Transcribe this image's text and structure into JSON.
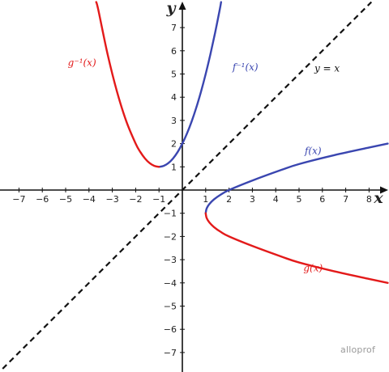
{
  "chart_data": {
    "type": "line",
    "title": "",
    "xlabel": "x",
    "ylabel": "y",
    "xlim": [
      -7.7,
      8.8
    ],
    "ylim": [
      -7.8,
      8.1
    ],
    "x_ticks": [
      -7,
      -6,
      -5,
      -4,
      -3,
      -2,
      -1,
      1,
      2,
      3,
      4,
      5,
      6,
      7,
      8
    ],
    "y_ticks": [
      -7,
      -6,
      -5,
      -4,
      -3,
      -2,
      -1,
      1,
      2,
      3,
      4,
      5,
      6,
      7
    ],
    "grid": false,
    "colors": {
      "red": "#e31a1a",
      "blue": "#3a46b0",
      "black": "#111111"
    },
    "series": [
      {
        "name": "f(x)",
        "label": "f(x)",
        "color": "#3a46b0",
        "label_at": [
          5.6,
          1.55
        ],
        "points": [
          [
            1,
            -1
          ],
          [
            1.04,
            -0.8
          ],
          [
            1.16,
            -0.6
          ],
          [
            1.36,
            -0.4
          ],
          [
            1.64,
            -0.2
          ],
          [
            2,
            0
          ],
          [
            3.0,
            0.41
          ],
          [
            4.25,
            0.87
          ],
          [
            5.0,
            1.12
          ],
          [
            6.5,
            1.5
          ],
          [
            8.0,
            1.83
          ],
          [
            8.8,
            2.0
          ]
        ]
      },
      {
        "name": "g(x)",
        "label": "g(x)",
        "color": "#e31a1a",
        "label_at": [
          5.6,
          -3.5
        ],
        "points": [
          [
            1,
            -1
          ],
          [
            1.04,
            -1.2
          ],
          [
            1.16,
            -1.4
          ],
          [
            1.36,
            -1.6
          ],
          [
            1.64,
            -1.8
          ],
          [
            2,
            -2
          ],
          [
            3.0,
            -2.41
          ],
          [
            4.25,
            -2.87
          ],
          [
            5.0,
            -3.12
          ],
          [
            6.5,
            -3.5
          ],
          [
            8.0,
            -3.83
          ],
          [
            8.8,
            -4.0
          ]
        ]
      },
      {
        "name": "f^-1(x)",
        "label": "f⁻¹(x)",
        "color": "#3a46b0",
        "label_at": [
          2.7,
          5.15
        ],
        "points": [
          [
            -1,
            1
          ],
          [
            -0.8,
            1.04
          ],
          [
            -0.6,
            1.16
          ],
          [
            -0.4,
            1.36
          ],
          [
            -0.2,
            1.64
          ],
          [
            0,
            2
          ],
          [
            0.2,
            2.44
          ],
          [
            0.4,
            2.96
          ],
          [
            0.6,
            3.56
          ],
          [
            0.8,
            4.24
          ],
          [
            1.0,
            5.0
          ],
          [
            1.2,
            5.84
          ],
          [
            1.4,
            6.76
          ],
          [
            1.6,
            7.76
          ],
          [
            1.66,
            8.1
          ]
        ]
      },
      {
        "name": "g^-1(x)",
        "label": "g⁻¹(x)",
        "color": "#e31a1a",
        "label_at": [
          -4.3,
          5.35
        ],
        "points": [
          [
            -1,
            1
          ],
          [
            -1.2,
            1.04
          ],
          [
            -1.4,
            1.16
          ],
          [
            -1.6,
            1.36
          ],
          [
            -1.8,
            1.64
          ],
          [
            -2,
            2
          ],
          [
            -2.4,
            2.96
          ],
          [
            -2.8,
            4.24
          ],
          [
            -3.2,
            5.84
          ],
          [
            -3.6,
            7.76
          ],
          [
            -3.69,
            8.1
          ]
        ]
      },
      {
        "name": "y = x",
        "label": "y = x",
        "color": "#111111",
        "dashed": true,
        "label_at": [
          6.2,
          5.1
        ],
        "points": [
          [
            -7.7,
            -7.7
          ],
          [
            8.1,
            8.1
          ]
        ]
      }
    ]
  },
  "watermark": "alloprof"
}
